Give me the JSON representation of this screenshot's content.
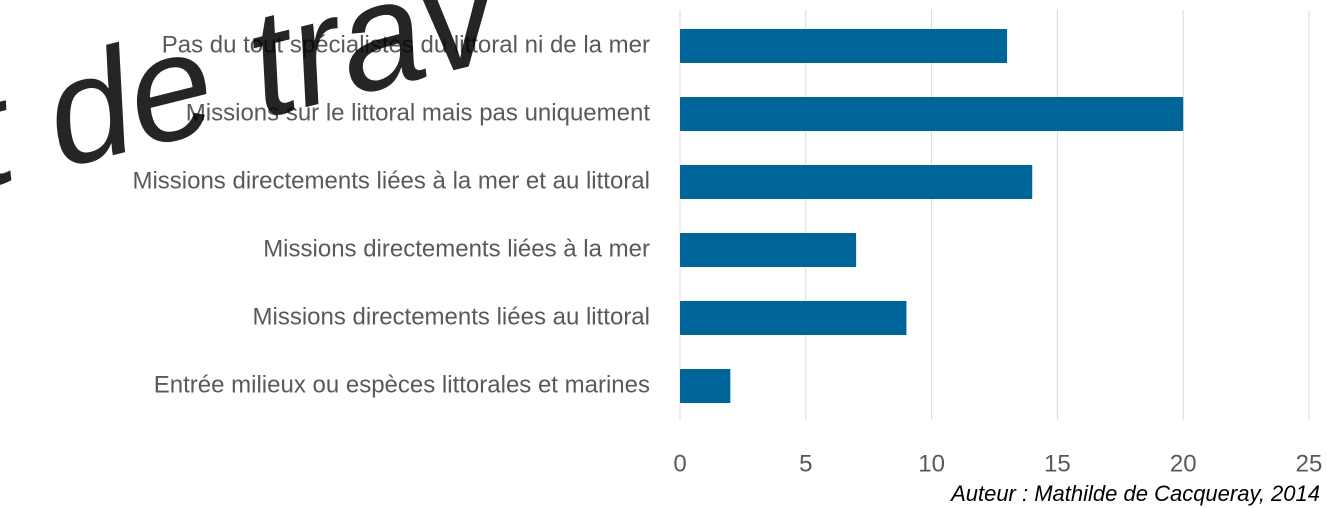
{
  "chart_data": {
    "type": "barh",
    "categories": [
      "Pas du tout spécialistes du littoral ni de la mer",
      "Missions sur le littoral mais pas uniquement",
      "Missions directements liées à la mer et au littoral",
      "Missions directements liées à la mer",
      "Missions directements liées au littoral",
      "Entrée milieux ou espèces littorales et marines"
    ],
    "values": [
      13,
      20,
      14,
      7,
      9,
      2
    ],
    "color": "#006699",
    "xlim": [
      0,
      25
    ],
    "xticks": [
      0,
      5,
      10,
      15,
      20,
      25
    ],
    "grid": true,
    "annotation": "Auteur : Mathilde de Cacqueray, 2014",
    "watermark": "t de trav"
  }
}
